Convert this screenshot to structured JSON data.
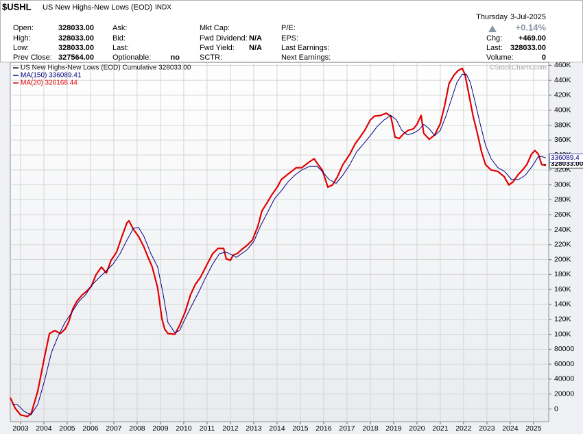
{
  "header": {
    "symbol": "$USHL",
    "name": "US New Highs-New Lows (EOD)",
    "exchange": "INDX",
    "weekday": "Thursday",
    "date": "3-Jul-2025",
    "change_pct": "+0.14%",
    "columns": [
      [
        {
          "label": "Open:",
          "value": "328033.00"
        },
        {
          "label": "High:",
          "value": "328033.00"
        },
        {
          "label": "Low:",
          "value": "328033.00"
        },
        {
          "label": "Prev Close:",
          "value": "327564.00"
        }
      ],
      [
        {
          "label": "Ask:"
        },
        {
          "label": "Bid:"
        },
        {
          "label": "Last:"
        },
        {
          "label": "Optionable:",
          "value": "no"
        }
      ],
      [
        {
          "label": "Mkt Cap:"
        },
        {
          "label": "Fwd Dividend:",
          "value": "N/A"
        },
        {
          "label": "Fwd Yield:",
          "value": "N/A"
        },
        {
          "label": "SCTR:"
        }
      ],
      [
        {
          "label": "P/E:"
        },
        {
          "label": "EPS:"
        },
        {
          "label": "Last Earnings:"
        },
        {
          "label": "Next Earnings:"
        }
      ]
    ],
    "right": [
      {
        "label": "Chg:",
        "value": "+469.00"
      },
      {
        "label": "Last:",
        "value": "328033.00"
      },
      {
        "label": "Volume:",
        "value": "0"
      }
    ],
    "watermark": "©StockCharts.com"
  },
  "chart_data": {
    "type": "line",
    "xlim": [
      2002.56,
      2025.65
    ],
    "xticks": [
      2003,
      2004,
      2005,
      2006,
      2007,
      2008,
      2009,
      2010,
      2011,
      2012,
      2013,
      2014,
      2015,
      2016,
      2017,
      2018,
      2019,
      2020,
      2021,
      2022,
      2023,
      2024,
      2025
    ],
    "ylim": [
      -17000,
      464000
    ],
    "yticks": [
      0,
      20000,
      40000,
      60000,
      80000,
      {
        "value": 100000,
        "label": "100K"
      },
      {
        "value": 120000,
        "label": "120K"
      },
      {
        "value": 140000,
        "label": "140K"
      },
      {
        "value": 160000,
        "label": "160K"
      },
      {
        "value": 180000,
        "label": "180K"
      },
      {
        "value": 200000,
        "label": "200K"
      },
      {
        "value": 220000,
        "label": "220K"
      },
      {
        "value": 240000,
        "label": "240K"
      },
      {
        "value": 260000,
        "label": "260K"
      },
      {
        "value": 280000,
        "label": "280K"
      },
      {
        "value": 300000,
        "label": "300K"
      },
      {
        "value": 320000,
        "label": "320K"
      },
      {
        "value": 340000,
        "label": "340K"
      },
      {
        "value": 360000,
        "label": "360K"
      },
      {
        "value": 380000,
        "label": "380K"
      },
      {
        "value": 400000,
        "label": "400K"
      },
      {
        "value": 420000,
        "label": "420K"
      },
      {
        "value": 440000,
        "label": "440K"
      },
      {
        "value": 460000,
        "label": "460K"
      }
    ],
    "grid": true,
    "series": [
      {
        "name": "US New Highs-New Lows (EOD) Cumulative 328033.00",
        "color": "#111111",
        "width": 1,
        "end_label": "328033.00",
        "x": [
          2002.56,
          2002.77,
          2003.0,
          2003.3,
          2003.47,
          2003.74,
          2004.03,
          2004.24,
          2004.47,
          2004.71,
          2004.91,
          2005.06,
          2005.24,
          2005.41,
          2005.65,
          2005.82,
          2006.03,
          2006.24,
          2006.47,
          2006.68,
          2006.88,
          2007.12,
          2007.35,
          2007.56,
          2007.65,
          2007.85,
          2008.06,
          2008.29,
          2008.47,
          2008.65,
          2008.88,
          2009.06,
          2009.18,
          2009.32,
          2009.62,
          2009.82,
          2010.06,
          2010.29,
          2010.5,
          2010.71,
          2010.94,
          2011.24,
          2011.47,
          2011.71,
          2011.82,
          2012.0,
          2012.12,
          2012.29,
          2012.47,
          2012.71,
          2012.94,
          2013.18,
          2013.35,
          2013.59,
          2013.76,
          2014.03,
          2014.18,
          2014.41,
          2014.62,
          2014.82,
          2015.06,
          2015.35,
          2015.59,
          2015.76,
          2015.94,
          2016.18,
          2016.38,
          2016.59,
          2016.82,
          2017.12,
          2017.35,
          2017.56,
          2017.76,
          2018.0,
          2018.18,
          2018.44,
          2018.68,
          2018.88,
          2019.06,
          2019.24,
          2019.41,
          2019.62,
          2019.85,
          2020.0,
          2020.18,
          2020.29,
          2020.53,
          2020.76,
          2021.0,
          2021.18,
          2021.38,
          2021.59,
          2021.76,
          2021.94,
          2022.06,
          2022.24,
          2022.41,
          2022.59,
          2022.77,
          2022.94,
          2023.18,
          2023.47,
          2023.74,
          2023.94,
          2024.12,
          2024.32,
          2024.53,
          2024.71,
          2024.91,
          2025.06,
          2025.21,
          2025.35,
          2025.53
        ],
        "values": [
          15000,
          1000,
          -8000,
          -10000,
          -5000,
          24000,
          70000,
          101000,
          105000,
          101000,
          107000,
          116000,
          134000,
          144000,
          153000,
          157000,
          164000,
          180000,
          190000,
          182000,
          199000,
          210000,
          231000,
          249000,
          252000,
          240000,
          231000,
          217000,
          203000,
          190000,
          162000,
          121000,
          107000,
          101000,
          100000,
          112000,
          130000,
          153000,
          167000,
          176000,
          190000,
          208000,
          215000,
          215000,
          201000,
          199000,
          206000,
          208000,
          213000,
          219000,
          226000,
          245000,
          265000,
          277000,
          286000,
          298000,
          307000,
          313000,
          318000,
          323000,
          323000,
          330000,
          335000,
          327000,
          320000,
          297000,
          300000,
          311000,
          327000,
          341000,
          355000,
          364000,
          373000,
          387000,
          392000,
          393000,
          396000,
          392000,
          364000,
          362000,
          368000,
          373000,
          375000,
          381000,
          393000,
          369000,
          361000,
          367000,
          382000,
          405000,
          436000,
          447000,
          453000,
          456000,
          448000,
          419000,
          392000,
          369000,
          344000,
          327000,
          320000,
          318000,
          311000,
          300000,
          304000,
          313000,
          320000,
          327000,
          341000,
          346000,
          341000,
          327000,
          328000
        ]
      },
      {
        "name": "MA(150) 336089.41",
        "color": "#00007f",
        "width": 1,
        "end_label": "336089.4",
        "x": [
          2002.65,
          2002.85,
          2003.15,
          2003.44,
          2003.74,
          2004.03,
          2004.32,
          2004.62,
          2004.91,
          2005.21,
          2005.5,
          2005.79,
          2006.09,
          2006.38,
          2006.68,
          2006.97,
          2007.27,
          2007.56,
          2007.85,
          2008.06,
          2008.29,
          2008.59,
          2008.88,
          2009.12,
          2009.32,
          2009.62,
          2009.82,
          2010.06,
          2010.35,
          2010.65,
          2010.94,
          2011.24,
          2011.53,
          2011.82,
          2012.26,
          2012.71,
          2013.0,
          2013.29,
          2013.59,
          2013.88,
          2014.18,
          2014.47,
          2014.76,
          2015.06,
          2015.41,
          2015.71,
          2015.94,
          2016.24,
          2016.53,
          2016.82,
          2017.12,
          2017.41,
          2017.71,
          2018.0,
          2018.29,
          2018.59,
          2018.88,
          2019.12,
          2019.35,
          2019.59,
          2019.82,
          2020.06,
          2020.29,
          2020.53,
          2020.76,
          2021.0,
          2021.24,
          2021.47,
          2021.71,
          2021.94,
          2022.12,
          2022.29,
          2022.47,
          2022.71,
          2022.94,
          2023.18,
          2023.47,
          2023.76,
          2024.06,
          2024.35,
          2024.65,
          2024.94,
          2025.21,
          2025.35,
          2025.53
        ],
        "values": [
          6000,
          6000,
          -3000,
          -8000,
          6000,
          38000,
          75000,
          98000,
          116000,
          130000,
          144000,
          153000,
          167000,
          176000,
          185000,
          194000,
          208000,
          226000,
          242000,
          243000,
          231000,
          208000,
          190000,
          153000,
          116000,
          102000,
          105000,
          121000,
          139000,
          157000,
          176000,
          194000,
          208000,
          210000,
          203000,
          213000,
          224000,
          245000,
          263000,
          281000,
          292000,
          304000,
          313000,
          320000,
          325000,
          325000,
          318000,
          307000,
          302000,
          313000,
          327000,
          344000,
          355000,
          366000,
          378000,
          387000,
          393000,
          387000,
          373000,
          367000,
          369000,
          373000,
          381000,
          375000,
          366000,
          373000,
          392000,
          414000,
          437000,
          448000,
          448000,
          437000,
          414000,
          382000,
          353000,
          335000,
          323000,
          318000,
          307000,
          307000,
          313000,
          325000,
          338000,
          338000,
          336000
        ]
      },
      {
        "name": "MA(20) 326168.44",
        "color": "#e00000",
        "width": 2.2,
        "x": [
          2002.56,
          2002.77,
          2003.0,
          2003.3,
          2003.47,
          2003.74,
          2004.03,
          2004.24,
          2004.47,
          2004.71,
          2004.91,
          2005.06,
          2005.24,
          2005.41,
          2005.65,
          2005.82,
          2006.03,
          2006.24,
          2006.47,
          2006.68,
          2006.88,
          2007.12,
          2007.35,
          2007.56,
          2007.65,
          2007.85,
          2008.06,
          2008.29,
          2008.47,
          2008.65,
          2008.88,
          2009.06,
          2009.18,
          2009.32,
          2009.62,
          2009.82,
          2010.06,
          2010.29,
          2010.5,
          2010.71,
          2010.94,
          2011.24,
          2011.47,
          2011.71,
          2011.82,
          2012.0,
          2012.12,
          2012.29,
          2012.47,
          2012.71,
          2012.94,
          2013.18,
          2013.35,
          2013.59,
          2013.76,
          2014.03,
          2014.18,
          2014.41,
          2014.62,
          2014.82,
          2015.06,
          2015.35,
          2015.59,
          2015.76,
          2015.94,
          2016.18,
          2016.38,
          2016.59,
          2016.82,
          2017.12,
          2017.35,
          2017.56,
          2017.76,
          2018.0,
          2018.18,
          2018.44,
          2018.68,
          2018.88,
          2019.06,
          2019.24,
          2019.41,
          2019.62,
          2019.85,
          2020.0,
          2020.18,
          2020.29,
          2020.53,
          2020.76,
          2021.0,
          2021.18,
          2021.38,
          2021.59,
          2021.76,
          2021.94,
          2022.06,
          2022.24,
          2022.41,
          2022.59,
          2022.77,
          2022.94,
          2023.18,
          2023.47,
          2023.74,
          2023.94,
          2024.12,
          2024.32,
          2024.53,
          2024.71,
          2024.91,
          2025.06,
          2025.21,
          2025.35,
          2025.53
        ],
        "values": [
          15000,
          1000,
          -8000,
          -10000,
          -5000,
          24000,
          70000,
          101000,
          105000,
          101000,
          107000,
          116000,
          134000,
          144000,
          153000,
          157000,
          164000,
          180000,
          190000,
          182000,
          199000,
          210000,
          231000,
          249000,
          252000,
          240000,
          231000,
          217000,
          203000,
          190000,
          162000,
          121000,
          107000,
          101000,
          100000,
          112000,
          130000,
          153000,
          167000,
          176000,
          190000,
          208000,
          215000,
          215000,
          201000,
          199000,
          206000,
          208000,
          213000,
          219000,
          226000,
          245000,
          265000,
          277000,
          286000,
          298000,
          307000,
          313000,
          318000,
          323000,
          323000,
          330000,
          335000,
          327000,
          320000,
          297000,
          300000,
          311000,
          327000,
          341000,
          355000,
          364000,
          373000,
          387000,
          392000,
          393000,
          396000,
          392000,
          364000,
          362000,
          368000,
          373000,
          375000,
          381000,
          393000,
          369000,
          361000,
          367000,
          382000,
          405000,
          436000,
          447000,
          453000,
          456000,
          448000,
          419000,
          392000,
          369000,
          344000,
          327000,
          320000,
          318000,
          311000,
          300000,
          304000,
          313000,
          320000,
          327000,
          341000,
          346000,
          341000,
          327000,
          326000
        ]
      }
    ]
  }
}
